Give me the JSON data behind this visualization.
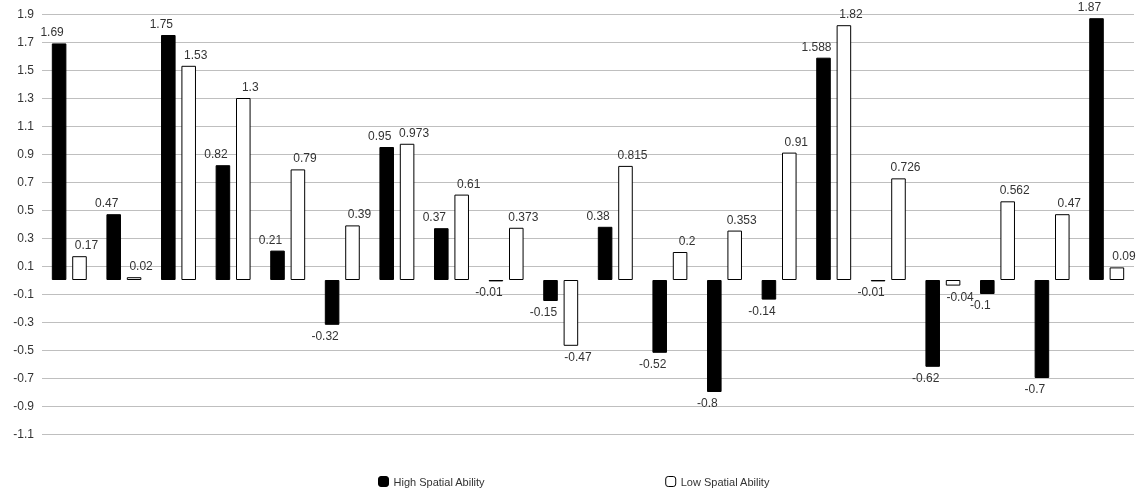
{
  "chart_data": {
    "type": "bar",
    "categories": [
      null,
      null,
      null,
      null,
      null,
      null,
      null,
      null,
      null,
      null,
      null,
      null,
      null,
      null,
      null,
      null,
      null,
      null,
      null,
      null
    ],
    "series": [
      {
        "name": "High Spatial Ability",
        "color": "#000000",
        "values": [
          1.69,
          0.47,
          1.75,
          0.82,
          0.21,
          -0.32,
          0.95,
          0.37,
          -0.01,
          -0.15,
          0.38,
          -0.52,
          -0.8,
          -0.14,
          1.588,
          -0.01,
          -0.62,
          -0.1,
          -0.7,
          1.87
        ]
      },
      {
        "name": "Low Spatial Ability",
        "color": "#ffffff",
        "values": [
          0.17,
          0.02,
          1.53,
          1.3,
          0.79,
          0.39,
          0.973,
          0.61,
          0.373,
          -0.47,
          0.815,
          0.2,
          0.353,
          0.91,
          1.82,
          0.726,
          -0.04,
          0.562,
          0.47,
          0.09
        ]
      }
    ],
    "ylim": [
      -1.1,
      1.9
    ],
    "yticks": [
      -1.1,
      -0.9,
      -0.7,
      -0.5,
      -0.3,
      -0.1,
      0.1,
      0.3,
      0.5,
      0.7,
      0.9,
      1.1,
      1.3,
      1.5,
      1.7,
      1.9
    ],
    "grid": "y",
    "legend": "bottom",
    "data_labels": true
  }
}
